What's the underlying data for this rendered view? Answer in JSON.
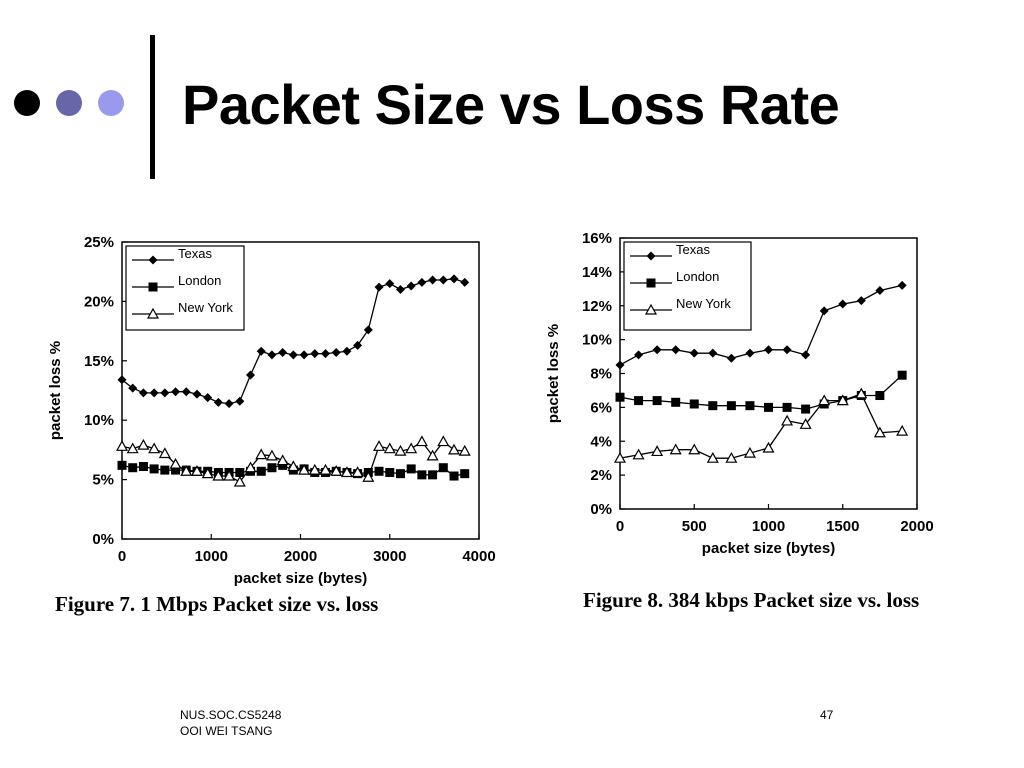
{
  "slide": {
    "title": "Packet Size vs Loss Rate",
    "bullet_colors": [
      "#000000",
      "#6666a8",
      "#9999ee"
    ],
    "footer": {
      "line1": "NUS.SOC.CS5248",
      "line2": "OOI WEI TSANG",
      "page": "47"
    }
  },
  "chart_data": [
    {
      "type": "line",
      "caption": "Figure 7. 1 Mbps Packet size vs. loss",
      "xlabel": "packet size (bytes)",
      "ylabel": "packet loss %",
      "xlim": [
        0,
        4000
      ],
      "ylim": [
        0,
        25
      ],
      "xticks": [
        0,
        1000,
        2000,
        3000,
        4000
      ],
      "yticks": [
        0,
        5,
        10,
        15,
        20,
        25
      ],
      "ytick_labels": [
        "0%",
        "5%",
        "10%",
        "15%",
        "20%",
        "25%"
      ],
      "xtick_labels": [
        "0",
        "1000",
        "2000",
        "3000",
        "4000"
      ],
      "legend": "top-left",
      "grid": false,
      "series": [
        {
          "name": "Texas",
          "marker": "diamond",
          "x": [
            0,
            120,
            240,
            360,
            480,
            600,
            720,
            840,
            960,
            1080,
            1200,
            1320,
            1440,
            1560,
            1680,
            1800,
            1920,
            2040,
            2160,
            2280,
            2400,
            2520,
            2640,
            2760,
            2880,
            3000,
            3120,
            3240,
            3360,
            3480,
            3600,
            3720,
            3840
          ],
          "y": [
            13.4,
            12.7,
            12.3,
            12.3,
            12.3,
            12.4,
            12.4,
            12.2,
            11.9,
            11.5,
            11.4,
            11.6,
            13.8,
            15.8,
            15.5,
            15.7,
            15.5,
            15.5,
            15.6,
            15.6,
            15.7,
            15.8,
            16.3,
            17.6,
            21.2,
            21.5,
            21.0,
            21.3,
            21.6,
            21.8,
            21.8,
            21.9,
            21.6
          ]
        },
        {
          "name": "London",
          "marker": "square",
          "x": [
            0,
            120,
            240,
            360,
            480,
            600,
            720,
            840,
            960,
            1080,
            1200,
            1320,
            1440,
            1560,
            1680,
            1800,
            1920,
            2040,
            2160,
            2280,
            2400,
            2520,
            2640,
            2760,
            2880,
            3000,
            3120,
            3240,
            3360,
            3480,
            3600,
            3720,
            3840
          ],
          "y": [
            6.2,
            6.0,
            6.1,
            5.9,
            5.8,
            5.8,
            5.8,
            5.7,
            5.7,
            5.6,
            5.6,
            5.6,
            5.7,
            5.7,
            6.0,
            6.2,
            5.8,
            5.9,
            5.6,
            5.6,
            5.7,
            5.6,
            5.5,
            5.6,
            5.7,
            5.6,
            5.5,
            5.9,
            5.4,
            5.4,
            6.0,
            5.3,
            5.5
          ]
        },
        {
          "name": "New York",
          "marker": "triangle",
          "x": [
            0,
            120,
            240,
            360,
            480,
            600,
            720,
            840,
            960,
            1080,
            1200,
            1320,
            1440,
            1560,
            1680,
            1800,
            1920,
            2040,
            2160,
            2280,
            2400,
            2520,
            2640,
            2760,
            2880,
            3000,
            3120,
            3240,
            3360,
            3480,
            3600,
            3720,
            3840
          ],
          "y": [
            7.8,
            7.6,
            7.9,
            7.6,
            7.2,
            6.3,
            5.7,
            5.7,
            5.5,
            5.3,
            5.3,
            4.8,
            6.0,
            7.1,
            7.0,
            6.6,
            6.1,
            5.8,
            5.8,
            5.8,
            5.7,
            5.6,
            5.6,
            5.2,
            7.8,
            7.6,
            7.4,
            7.6,
            8.2,
            7.0,
            8.2,
            7.5,
            7.4
          ]
        }
      ]
    },
    {
      "type": "line",
      "caption": "Figure 8. 384 kbps Packet size vs. loss",
      "xlabel": "packet size (bytes)",
      "ylabel": "packet loss %",
      "xlim": [
        0,
        2000
      ],
      "ylim": [
        0,
        16
      ],
      "xticks": [
        0,
        500,
        1000,
        1500,
        2000
      ],
      "yticks": [
        0,
        2,
        4,
        6,
        8,
        10,
        12,
        14,
        16
      ],
      "ytick_labels": [
        "0%",
        "2%",
        "4%",
        "6%",
        "8%",
        "10%",
        "12%",
        "14%",
        "16%"
      ],
      "xtick_labels": [
        "0",
        "500",
        "1000",
        "1500",
        "2000"
      ],
      "legend": "top-left",
      "grid": false,
      "series": [
        {
          "name": "Texas",
          "marker": "diamond",
          "x": [
            0,
            125,
            250,
            375,
            500,
            625,
            750,
            875,
            1000,
            1125,
            1250,
            1375,
            1500,
            1625,
            1750,
            1900
          ],
          "y": [
            8.5,
            9.1,
            9.4,
            9.4,
            9.2,
            9.2,
            8.9,
            9.2,
            9.4,
            9.4,
            9.1,
            11.7,
            12.1,
            12.3,
            12.9,
            13.2
          ]
        },
        {
          "name": "London",
          "marker": "square",
          "x": [
            0,
            125,
            250,
            375,
            500,
            625,
            750,
            875,
            1000,
            1125,
            1250,
            1375,
            1500,
            1625,
            1750,
            1900
          ],
          "y": [
            6.6,
            6.4,
            6.4,
            6.3,
            6.2,
            6.1,
            6.1,
            6.1,
            6.0,
            6.0,
            5.9,
            6.2,
            6.4,
            6.7,
            6.7,
            7.9
          ]
        },
        {
          "name": "New York",
          "marker": "triangle",
          "x": [
            0,
            125,
            250,
            375,
            500,
            625,
            750,
            875,
            1000,
            1125,
            1250,
            1375,
            1500,
            1625,
            1750,
            1900
          ],
          "y": [
            3.0,
            3.2,
            3.4,
            3.5,
            3.5,
            3.0,
            3.0,
            3.3,
            3.6,
            5.2,
            5.0,
            6.4,
            6.4,
            6.8,
            4.5,
            4.6
          ]
        }
      ]
    }
  ]
}
